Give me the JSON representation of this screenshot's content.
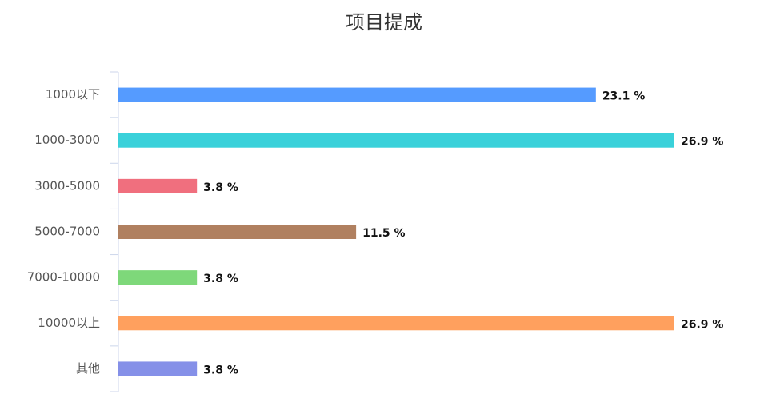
{
  "chart_data": {
    "type": "bar",
    "orientation": "horizontal",
    "title": "项目提成",
    "categories": [
      "1000以下",
      "1000-3000",
      "3000-5000",
      "5000-7000",
      "7000-10000",
      "10000以上",
      "其他"
    ],
    "values": [
      23.1,
      26.9,
      3.8,
      11.5,
      3.8,
      26.9,
      3.8
    ],
    "value_labels": [
      "23.1 %",
      "26.9 %",
      "3.8 %",
      "11.5 %",
      "3.8 %",
      "26.9 %",
      "3.8 %"
    ],
    "colors": [
      "#559bff",
      "#3ad1da",
      "#f06f7e",
      "#b08060",
      "#7ed87a",
      "#ffa05e",
      "#8590e8"
    ]
  }
}
